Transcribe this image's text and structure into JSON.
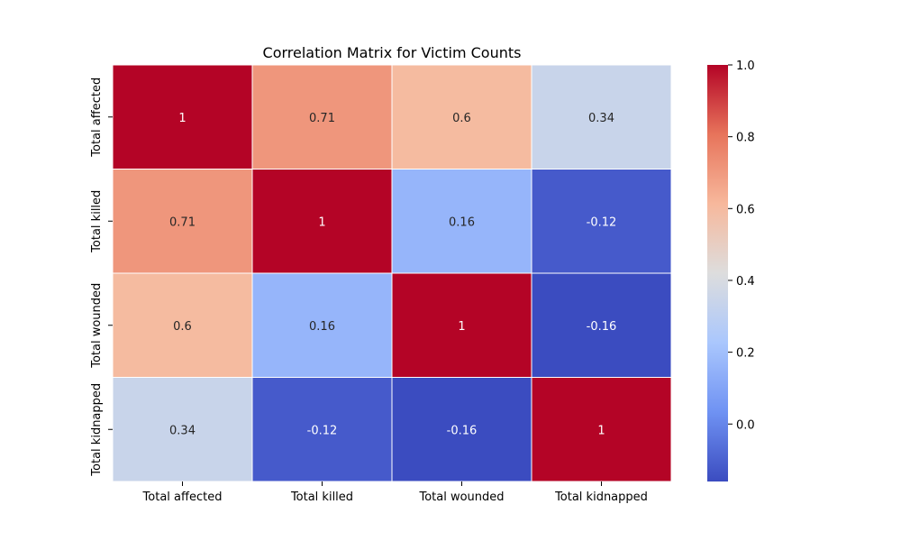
{
  "chart_data": {
    "type": "heatmap",
    "title": "Correlation Matrix for Victim Counts",
    "xlabel": "",
    "ylabel": "",
    "x_categories": [
      "Total affected",
      "Total killed",
      "Total wounded",
      "Total kidnapped"
    ],
    "y_categories": [
      "Total affected",
      "Total killed",
      "Total wounded",
      "Total kidnapped"
    ],
    "matrix": [
      [
        1,
        0.71,
        0.6,
        0.34
      ],
      [
        0.71,
        1,
        0.16,
        -0.12
      ],
      [
        0.6,
        0.16,
        1,
        -0.16
      ],
      [
        0.34,
        -0.12,
        -0.16,
        1
      ]
    ],
    "cell_labels": [
      [
        "1",
        "0.71",
        "0.6",
        "0.34"
      ],
      [
        "0.71",
        "1",
        "0.16",
        "-0.12"
      ],
      [
        "0.6",
        "0.16",
        "1",
        "-0.16"
      ],
      [
        "0.34",
        "-0.12",
        "-0.16",
        "1"
      ]
    ],
    "colormap": "coolwarm",
    "colormap_stops": [
      "#3b4cc0",
      "#6f92f3",
      "#aac7fd",
      "#dddddd",
      "#f7b89c",
      "#e7745b",
      "#b40426"
    ],
    "vmin": -0.16,
    "vmax": 1.0,
    "colorbar_ticks": [
      "0.0",
      "0.2",
      "0.4",
      "0.6",
      "0.8",
      "1.0"
    ],
    "colorbar_tick_values": [
      0.0,
      0.2,
      0.4,
      0.6,
      0.8,
      1.0
    ],
    "grid_line_color": "#ffffff"
  }
}
